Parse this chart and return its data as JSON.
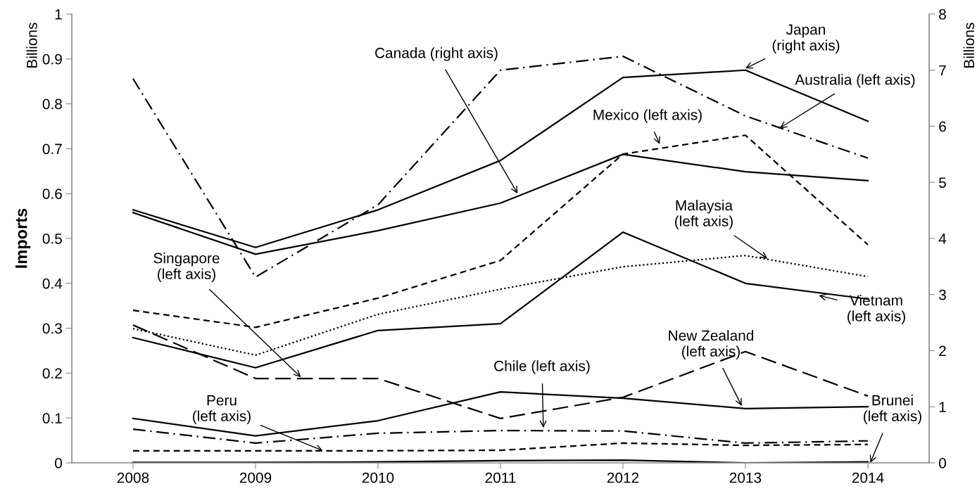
{
  "chart_data": {
    "type": "line",
    "ylabel": "Imports",
    "y2label": "Billions",
    "x": [
      2008,
      2009,
      2010,
      2011,
      2012,
      2013,
      2014
    ],
    "xlim": [
      2007.5,
      2014.5
    ],
    "xticks": [
      2008,
      2009,
      2010,
      2011,
      2012,
      2013,
      2014
    ],
    "ylim": [
      0,
      1
    ],
    "yticks": [
      0,
      0.1,
      0.2,
      0.3,
      0.4,
      0.5,
      0.6,
      0.7,
      0.8,
      0.9,
      1
    ],
    "y2lim": [
      0,
      8
    ],
    "y2ticks": [
      0,
      1,
      2,
      3,
      4,
      5,
      6,
      7,
      8
    ],
    "grid": false,
    "legend": false,
    "series": [
      {
        "color": "#000000",
        "axis": "y2",
        "line_style": "solid",
        "values": [
          4.51,
          3.84,
          4.51,
          5.39,
          6.87,
          7.0,
          6.09
        ]
      },
      {
        "color": "#000000",
        "axis": "y2",
        "line_style": "solid",
        "values": [
          4.46,
          3.72,
          4.14,
          4.63,
          5.5,
          5.19,
          5.03
        ]
      },
      {
        "color": "#000000",
        "line_style": "dashdot",
        "values": [
          0.856,
          0.414,
          0.575,
          0.875,
          0.906,
          0.773,
          0.679
        ]
      },
      {
        "color": "#000000",
        "line_style": "dashed",
        "values": [
          0.34,
          0.302,
          0.367,
          0.451,
          0.688,
          0.73,
          0.486
        ]
      },
      {
        "color": "#000000",
        "line_style": "dotted",
        "values": [
          0.299,
          0.24,
          0.331,
          0.387,
          0.437,
          0.462,
          0.415
        ]
      },
      {
        "color": "#000000",
        "line_style": "solid",
        "values": [
          0.279,
          0.212,
          0.295,
          0.31,
          0.514,
          0.4,
          0.365
        ]
      },
      {
        "color": "#000000",
        "line_style": "longdash",
        "values": [
          0.307,
          0.188,
          0.188,
          0.099,
          0.146,
          0.248,
          0.149
        ]
      },
      {
        "color": "#000000",
        "line_style": "solid",
        "values": [
          0.099,
          0.06,
          0.094,
          0.158,
          0.144,
          0.121,
          0.125
        ]
      },
      {
        "color": "#000000",
        "line_style": "dashdot",
        "values": [
          0.075,
          0.044,
          0.066,
          0.072,
          0.071,
          0.044,
          0.049
        ]
      },
      {
        "color": "#000000",
        "line_style": "dashed",
        "values": [
          0.027,
          0.027,
          0.027,
          0.028,
          0.044,
          0.039,
          0.041
        ]
      },
      {
        "color": "#000000",
        "line_style": "solid",
        "values": [
          0.001,
          0.001,
          0.002,
          0.005,
          0.006,
          0.0,
          0.002
        ]
      }
    ],
    "annotations": [
      {
        "text": "Japan\n(right axis)",
        "x": 2013.0,
        "y": 0.879
      },
      {
        "text": "Canada (right axis)",
        "x": 2011.14,
        "y": 0.6
      },
      {
        "text": "Australia (left axis)",
        "x": 2013.28,
        "y": 0.746
      },
      {
        "text": "Mexico (left axis)",
        "x": 2012.3,
        "y": 0.71
      },
      {
        "text": "Malaysia\n(left axis)",
        "x": 2013.18,
        "y": 0.455
      },
      {
        "text": "Vietnam\n(left axis)",
        "x": 2013.6,
        "y": 0.373
      },
      {
        "text": "Singapore\n(left axis)",
        "x": 2009.37,
        "y": 0.191
      },
      {
        "text": "Peru\n(left axis)",
        "x": 2009.55,
        "y": 0.027
      },
      {
        "text": "Chile (left axis)",
        "x": 2011.35,
        "y": 0.078
      },
      {
        "text": "New Zealand\n(left axis)",
        "x": 2012.97,
        "y": 0.127
      },
      {
        "text": "Brunei\n(left axis)",
        "x": 2014.02,
        "y": 0.0
      },
      "Billions"
    ]
  }
}
